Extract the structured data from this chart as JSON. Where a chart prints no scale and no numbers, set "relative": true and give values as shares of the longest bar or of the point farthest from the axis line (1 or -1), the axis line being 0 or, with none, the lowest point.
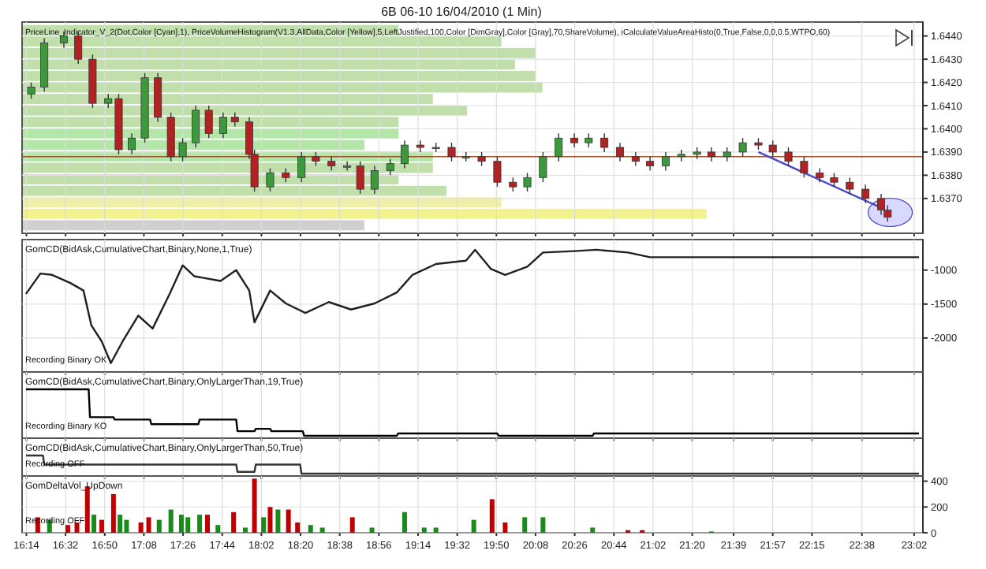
{
  "chart_data": [
    {
      "type": "candlestick",
      "title": "6B 06-10  16/04/2010 (1 Min)",
      "annotations": [
        "PriceLine_Indicator_V_2(Dot,Color [Cyan],1), PriceVolumeHistogram(V1.3,AllData,Color [Yellow],5,LeftJustified,100,Color [DimGray],Color [Gray],70,ShareVolume), iCalculateValueAreaHisto(0,True,False,0,0,0.5,WTPO,60)"
      ],
      "x": [
        16.27,
        16.37,
        16.52,
        16.63,
        16.74,
        16.86,
        16.94,
        17.04,
        17.14,
        17.24,
        17.34,
        17.43,
        17.53,
        17.63,
        17.74,
        17.83,
        17.94,
        17.98,
        18.1,
        18.22,
        18.34,
        18.45,
        18.57,
        18.69,
        18.79,
        18.9,
        19.02,
        19.13,
        19.25,
        19.37,
        19.49,
        19.6,
        19.72,
        19.84,
        19.96,
        20.07,
        20.19,
        20.31,
        20.43,
        20.54,
        20.66,
        20.78,
        20.9,
        21.01,
        21.13,
        21.25,
        21.37,
        21.48,
        21.6,
        21.72,
        21.84,
        21.95,
        22.07,
        22.19,
        22.31,
        22.42,
        22.54,
        22.66,
        22.78,
        22.83
      ],
      "ohlc": [
        [
          1.6415,
          1.642,
          1.6413,
          1.6418
        ],
        [
          1.6418,
          1.6439,
          1.6416,
          1.6437
        ],
        [
          1.6437,
          1.6442,
          1.6435,
          1.644
        ],
        [
          1.644,
          1.6442,
          1.6428,
          1.643
        ],
        [
          1.643,
          1.6432,
          1.6409,
          1.6411
        ],
        [
          1.6411,
          1.6415,
          1.6409,
          1.6413
        ],
        [
          1.6413,
          1.6415,
          1.6389,
          1.6391
        ],
        [
          1.6391,
          1.6398,
          1.6389,
          1.6396
        ],
        [
          1.6396,
          1.6424,
          1.6394,
          1.6422
        ],
        [
          1.6422,
          1.6424,
          1.6403,
          1.6405
        ],
        [
          1.6405,
          1.6407,
          1.6386,
          1.6388
        ],
        [
          1.6388,
          1.6396,
          1.6386,
          1.6394
        ],
        [
          1.6394,
          1.641,
          1.6392,
          1.6408
        ],
        [
          1.6408,
          1.641,
          1.6396,
          1.6398
        ],
        [
          1.6398,
          1.6407,
          1.6396,
          1.6405
        ],
        [
          1.6405,
          1.6407,
          1.6401,
          1.6403
        ],
        [
          1.6403,
          1.6405,
          1.6387,
          1.6389
        ],
        [
          1.6389,
          1.6391,
          1.6373,
          1.6375
        ],
        [
          1.6375,
          1.6383,
          1.6373,
          1.6381
        ],
        [
          1.6381,
          1.6383,
          1.6377,
          1.6379
        ],
        [
          1.6379,
          1.639,
          1.6377,
          1.6388
        ],
        [
          1.6388,
          1.639,
          1.6384,
          1.6386
        ],
        [
          1.6386,
          1.6388,
          1.6382,
          1.6384
        ],
        [
          1.6384,
          1.6386,
          1.6382,
          1.6384
        ],
        [
          1.6384,
          1.6386,
          1.6372,
          1.6374
        ],
        [
          1.6374,
          1.6384,
          1.6372,
          1.6382
        ],
        [
          1.6382,
          1.6387,
          1.638,
          1.6385
        ],
        [
          1.6385,
          1.6395,
          1.6383,
          1.6393
        ],
        [
          1.6393,
          1.6395,
          1.639,
          1.6392
        ],
        [
          1.6392,
          1.6394,
          1.639,
          1.6392
        ],
        [
          1.6392,
          1.6394,
          1.6386,
          1.6388
        ],
        [
          1.6388,
          1.639,
          1.6386,
          1.6388
        ],
        [
          1.6388,
          1.639,
          1.6384,
          1.6386
        ],
        [
          1.6386,
          1.6388,
          1.6375,
          1.6377
        ],
        [
          1.6377,
          1.6379,
          1.6373,
          1.6375
        ],
        [
          1.6375,
          1.6381,
          1.6373,
          1.6379
        ],
        [
          1.6379,
          1.639,
          1.6377,
          1.6388
        ],
        [
          1.6388,
          1.6398,
          1.6386,
          1.6396
        ],
        [
          1.6396,
          1.6398,
          1.6392,
          1.6394
        ],
        [
          1.6394,
          1.6398,
          1.6392,
          1.6396
        ],
        [
          1.6396,
          1.6398,
          1.639,
          1.6392
        ],
        [
          1.6392,
          1.6394,
          1.6386,
          1.6388
        ],
        [
          1.6388,
          1.639,
          1.6384,
          1.6386
        ],
        [
          1.6386,
          1.6388,
          1.6382,
          1.6384
        ],
        [
          1.6384,
          1.639,
          1.6382,
          1.6388
        ],
        [
          1.6388,
          1.6391,
          1.6386,
          1.6389
        ],
        [
          1.6389,
          1.6392,
          1.6387,
          1.639
        ],
        [
          1.639,
          1.6392,
          1.6386,
          1.6388
        ],
        [
          1.6388,
          1.6392,
          1.6386,
          1.639
        ],
        [
          1.639,
          1.6396,
          1.6388,
          1.6394
        ],
        [
          1.6394,
          1.6396,
          1.6391,
          1.6393
        ],
        [
          1.6393,
          1.6395,
          1.6388,
          1.639
        ],
        [
          1.639,
          1.6392,
          1.6384,
          1.6386
        ],
        [
          1.6386,
          1.6388,
          1.6379,
          1.6381
        ],
        [
          1.6381,
          1.6383,
          1.6377,
          1.6379
        ],
        [
          1.6379,
          1.6381,
          1.6375,
          1.6377
        ],
        [
          1.6377,
          1.6379,
          1.6372,
          1.6374
        ],
        [
          1.6374,
          1.6376,
          1.6368,
          1.637
        ],
        [
          1.637,
          1.6372,
          1.6363,
          1.6365
        ],
        [
          1.6365,
          1.6367,
          1.636,
          1.6362
        ]
      ],
      "series": [
        {
          "type": "line",
          "x": [
            21.84,
            22.78
          ],
          "values": [
            1.639,
            1.6366
          ],
          "color": "#4848c8"
        }
      ],
      "ref_lines": [
        {
          "axis": "y",
          "value": 1.6388,
          "color": "#a0522d"
        }
      ],
      "xlim": [
        16.2,
        23.1
      ],
      "ylim": [
        1.6355,
        1.6446
      ],
      "xticks": [
        {
          "value": 16.233,
          "label": null
        },
        {
          "value": 16.533,
          "label": null
        },
        {
          "value": 16.833,
          "label": null
        },
        {
          "value": 17.133,
          "label": null
        },
        {
          "value": 17.433,
          "label": null
        },
        {
          "value": 17.733,
          "label": null
        },
        {
          "value": 18.033,
          "label": null
        },
        {
          "value": 18.333,
          "label": null
        },
        {
          "value": 18.633,
          "label": null
        },
        {
          "value": 18.933,
          "label": null
        },
        {
          "value": 19.233,
          "label": null
        },
        {
          "value": 19.533,
          "label": null
        },
        {
          "value": 19.833,
          "label": null
        },
        {
          "value": 20.133,
          "label": null
        },
        {
          "value": 20.433,
          "label": null
        },
        {
          "value": 20.733,
          "label": null
        },
        {
          "value": 21.033,
          "label": null
        },
        {
          "value": 21.333,
          "label": null
        },
        {
          "value": 21.65,
          "label": null
        },
        {
          "value": 21.95,
          "label": null
        },
        {
          "value": 22.25,
          "label": null
        },
        {
          "value": 22.633,
          "label": null
        },
        {
          "value": 23.033,
          "label": null
        }
      ],
      "yticks": [
        {
          "value": 1.637,
          "label": "1.6370"
        },
        {
          "value": 1.638,
          "label": "1.6380"
        },
        {
          "value": 1.639,
          "label": "1.6390"
        },
        {
          "value": 1.64,
          "label": "1.6400"
        },
        {
          "value": 1.641,
          "label": "1.6410"
        },
        {
          "value": 1.642,
          "label": "1.6420"
        },
        {
          "value": 1.643,
          "label": "1.6430"
        },
        {
          "value": 1.644,
          "label": "1.6440"
        }
      ],
      "grid": true,
      "tick_labels": "y"
    },
    {
      "type": "bar",
      "orientation": "horizontal",
      "relative": true,
      "categories": [
        null,
        null,
        null,
        null,
        null,
        null,
        null,
        null,
        null,
        null,
        null,
        null,
        null,
        null,
        null,
        null,
        null,
        null
      ],
      "values": [
        0.55,
        0.7,
        0.75,
        0.72,
        0.75,
        0.76,
        0.6,
        0.65,
        0.55,
        0.55,
        0.5,
        0.6,
        0.6,
        0.55,
        0.62,
        0.7,
        1,
        0.5
      ],
      "colors": [
        "#b5d99c",
        "#b5d99c",
        "#b5d99c",
        "#b5d99c",
        "#b5d99c",
        "#b5d99c",
        "#b5d99c",
        "#b5d99c",
        "#b5d99c",
        "#a8e29a",
        "#a8e29a",
        "#a8e29a",
        "#b5d99c",
        "#b5d99c",
        "#b5d99c",
        "#ecec9a",
        "#f0f07a",
        "#c8c8c8"
      ]
    },
    {
      "type": "line",
      "color": "#202020",
      "annotations": [
        "GomCD(BidAsk,CumulativeChart,Binary,None,1,True)",
        "Recording Binary OK"
      ],
      "x": [
        16.23,
        16.34,
        16.43,
        16.57,
        16.67,
        16.73,
        16.81,
        16.88,
        16.97,
        17.09,
        17.2,
        17.33,
        17.43,
        17.52,
        17.72,
        17.84,
        17.94,
        17.98,
        18.1,
        18.22,
        18.37,
        18.55,
        18.72,
        18.9,
        19.07,
        19.19,
        19.37,
        19.6,
        19.67,
        19.79,
        19.9,
        20.07,
        20.19,
        20.43,
        20.6,
        20.84,
        21.01,
        23.07
      ],
      "values": [
        -1350,
        -1050,
        -1070,
        -1190,
        -1300,
        -1810,
        -2050,
        -2370,
        -2050,
        -1670,
        -1860,
        -1350,
        -930,
        -1090,
        -1160,
        -1000,
        -1300,
        -1770,
        -1300,
        -1490,
        -1630,
        -1470,
        -1580,
        -1490,
        -1330,
        -1070,
        -910,
        -860,
        -700,
        -980,
        -1070,
        -950,
        -740,
        -720,
        -700,
        -740,
        -810,
        -810
      ],
      "xlim": [
        16.2,
        23.1
      ],
      "ylim": [
        -2500,
        -550
      ],
      "xticks": [
        {
          "value": 16.233,
          "label": null
        },
        {
          "value": 16.533,
          "label": null
        },
        {
          "value": 16.833,
          "label": null
        },
        {
          "value": 17.133,
          "label": null
        },
        {
          "value": 17.433,
          "label": null
        },
        {
          "value": 17.733,
          "label": null
        },
        {
          "value": 18.033,
          "label": null
        },
        {
          "value": 18.333,
          "label": null
        },
        {
          "value": 18.633,
          "label": null
        },
        {
          "value": 18.933,
          "label": null
        },
        {
          "value": 19.233,
          "label": null
        },
        {
          "value": 19.533,
          "label": null
        },
        {
          "value": 19.833,
          "label": null
        },
        {
          "value": 20.133,
          "label": null
        },
        {
          "value": 20.433,
          "label": null
        },
        {
          "value": 20.733,
          "label": null
        },
        {
          "value": 21.033,
          "label": null
        },
        {
          "value": 21.333,
          "label": null
        },
        {
          "value": 21.65,
          "label": null
        },
        {
          "value": 21.95,
          "label": null
        },
        {
          "value": 22.25,
          "label": null
        },
        {
          "value": 22.633,
          "label": null
        },
        {
          "value": 23.033,
          "label": null
        }
      ],
      "yticks": [
        -2000,
        -1500,
        -1000
      ],
      "grid": true,
      "tick_labels": "y"
    },
    {
      "type": "line",
      "color": "#000000",
      "relative": true,
      "annotations": [
        "GomCD(BidAsk,CumulativeChart,Binary,OnlyLargerThan,19,True)",
        "Recording Binary KO"
      ],
      "x": [
        16.23,
        16.71,
        16.72,
        16.9,
        16.91,
        17.18,
        17.19,
        17.55,
        17.56,
        17.84,
        17.85,
        17.98,
        17.99,
        18.1,
        18.11,
        18.35,
        18.36,
        19.07,
        19.08,
        19.84,
        19.85,
        20.57,
        20.58,
        23.07
      ],
      "values": [
        1,
        1,
        0.4,
        0.4,
        0.35,
        0.35,
        0.25,
        0.25,
        0.35,
        0.35,
        0.1,
        0.1,
        0.15,
        0.15,
        0.1,
        0.1,
        0,
        0,
        0.05,
        0.05,
        0,
        0,
        0.05,
        0.05
      ],
      "xlim": [
        16.2,
        23.1
      ],
      "xticks": [
        {
          "value": 16.233,
          "label": null
        },
        {
          "value": 16.533,
          "label": null
        },
        {
          "value": 16.833,
          "label": null
        },
        {
          "value": 17.133,
          "label": null
        },
        {
          "value": 17.433,
          "label": null
        },
        {
          "value": 17.733,
          "label": null
        },
        {
          "value": 18.033,
          "label": null
        },
        {
          "value": 18.333,
          "label": null
        },
        {
          "value": 18.633,
          "label": null
        },
        {
          "value": 18.933,
          "label": null
        },
        {
          "value": 19.233,
          "label": null
        },
        {
          "value": 19.533,
          "label": null
        },
        {
          "value": 19.833,
          "label": null
        },
        {
          "value": 20.133,
          "label": null
        },
        {
          "value": 20.433,
          "label": null
        },
        {
          "value": 20.733,
          "label": null
        },
        {
          "value": 21.033,
          "label": null
        },
        {
          "value": 21.333,
          "label": null
        },
        {
          "value": 21.65,
          "label": null
        },
        {
          "value": 21.95,
          "label": null
        },
        {
          "value": 22.25,
          "label": null
        },
        {
          "value": 22.633,
          "label": null
        },
        {
          "value": 23.033,
          "label": null
        }
      ],
      "grid": "x",
      "tick_labels": false
    },
    {
      "type": "line",
      "color": "#333333",
      "relative": true,
      "annotations": [
        "GomCD(BidAsk,CumulativeChart,Binary,OnlyLargerThan,50,True)",
        "Recording OFF"
      ],
      "x": [
        16.23,
        16.36,
        16.37,
        17.84,
        17.85,
        17.98,
        17.99,
        18.33,
        18.34,
        23.07
      ],
      "values": [
        1,
        1,
        0.5,
        0.5,
        0.1,
        0.1,
        0.5,
        0.5,
        0,
        0
      ],
      "xlim": [
        16.2,
        23.1
      ],
      "xticks": [
        {
          "value": 16.233,
          "label": null
        },
        {
          "value": 16.533,
          "label": null
        },
        {
          "value": 16.833,
          "label": null
        },
        {
          "value": 17.133,
          "label": null
        },
        {
          "value": 17.433,
          "label": null
        },
        {
          "value": 17.733,
          "label": null
        },
        {
          "value": 18.033,
          "label": null
        },
        {
          "value": 18.333,
          "label": null
        },
        {
          "value": 18.633,
          "label": null
        },
        {
          "value": 18.933,
          "label": null
        },
        {
          "value": 19.233,
          "label": null
        },
        {
          "value": 19.533,
          "label": null
        },
        {
          "value": 19.833,
          "label": null
        },
        {
          "value": 20.133,
          "label": null
        },
        {
          "value": 20.433,
          "label": null
        },
        {
          "value": 20.733,
          "label": null
        },
        {
          "value": 21.033,
          "label": null
        },
        {
          "value": 21.333,
          "label": null
        },
        {
          "value": 21.65,
          "label": null
        },
        {
          "value": 21.95,
          "label": null
        },
        {
          "value": 22.25,
          "label": null
        },
        {
          "value": 22.633,
          "label": null
        },
        {
          "value": 23.033,
          "label": null
        }
      ],
      "grid": "x",
      "tick_labels": false
    },
    {
      "type": "bar",
      "annotations": [
        "GomDeltaVol_UpDown",
        "Recording OFF"
      ],
      "x": [
        16.32,
        16.41,
        16.55,
        16.62,
        16.7,
        16.75,
        16.81,
        16.9,
        16.95,
        17.0,
        17.11,
        17.17,
        17.25,
        17.34,
        17.42,
        17.47,
        17.56,
        17.62,
        17.7,
        17.82,
        17.91,
        17.98,
        18.05,
        18.1,
        18.16,
        18.24,
        18.31,
        18.41,
        18.5,
        18.73,
        18.88,
        19.13,
        19.28,
        19.37,
        19.66,
        19.8,
        19.9,
        20.05,
        20.19,
        20.57,
        20.84,
        20.95,
        21.48
      ],
      "values": [
        120,
        100,
        60,
        80,
        360,
        140,
        100,
        300,
        140,
        100,
        80,
        120,
        100,
        180,
        140,
        120,
        140,
        140,
        60,
        160,
        40,
        420,
        120,
        200,
        180,
        180,
        80,
        60,
        40,
        120,
        40,
        160,
        40,
        40,
        100,
        260,
        80,
        120,
        120,
        40,
        20,
        20,
        10
      ],
      "colors": [
        "#c00000",
        "#1a8a1a",
        "#c00000",
        "#c00000",
        "#c00000",
        "#1a8a1a",
        "#c00000",
        "#c00000",
        "#1a8a1a",
        "#1a8a1a",
        "#c00000",
        "#c00000",
        "#1a8a1a",
        "#1a8a1a",
        "#1a8a1a",
        "#1a8a1a",
        "#1a8a1a",
        "#c00000",
        "#1a8a1a",
        "#c00000",
        "#1a8a1a",
        "#c00000",
        "#1a8a1a",
        "#c00000",
        "#1a8a1a",
        "#c00000",
        "#c00000",
        "#1a8a1a",
        "#1a8a1a",
        "#c00000",
        "#1a8a1a",
        "#1a8a1a",
        "#1a8a1a",
        "#1a8a1a",
        "#1a8a1a",
        "#c00000",
        "#c00000",
        "#1a8a1a",
        "#1a8a1a",
        "#1a8a1a",
        "#c00000",
        "#c00000",
        "#1a8a1a"
      ],
      "xlim": [
        16.2,
        23.1
      ],
      "ylim": [
        0,
        440
      ],
      "xticks": [
        {
          "value": 16.233,
          "label": "16:14"
        },
        {
          "value": 16.533,
          "label": "16:32"
        },
        {
          "value": 16.833,
          "label": "16:50"
        },
        {
          "value": 17.133,
          "label": "17:08"
        },
        {
          "value": 17.433,
          "label": "17:26"
        },
        {
          "value": 17.733,
          "label": "17:44"
        },
        {
          "value": 18.033,
          "label": "18:02"
        },
        {
          "value": 18.333,
          "label": "18:20"
        },
        {
          "value": 18.633,
          "label": "18:38"
        },
        {
          "value": 18.933,
          "label": "18:56"
        },
        {
          "value": 19.233,
          "label": "19:14"
        },
        {
          "value": 19.533,
          "label": "19:32"
        },
        {
          "value": 19.833,
          "label": "19:50"
        },
        {
          "value": 20.133,
          "label": "20:08"
        },
        {
          "value": 20.433,
          "label": "20:26"
        },
        {
          "value": 20.733,
          "label": "20:44"
        },
        {
          "value": 21.033,
          "label": "21:02"
        },
        {
          "value": 21.333,
          "label": "21:20"
        },
        {
          "value": 21.65,
          "label": "21:39"
        },
        {
          "value": 21.95,
          "label": "21:57"
        },
        {
          "value": 22.25,
          "label": "22:15"
        },
        {
          "value": 22.633,
          "label": "22:38"
        },
        {
          "value": 23.033,
          "label": "23:02"
        }
      ],
      "yticks": [
        0,
        200,
        400
      ],
      "grid": true
    }
  ]
}
